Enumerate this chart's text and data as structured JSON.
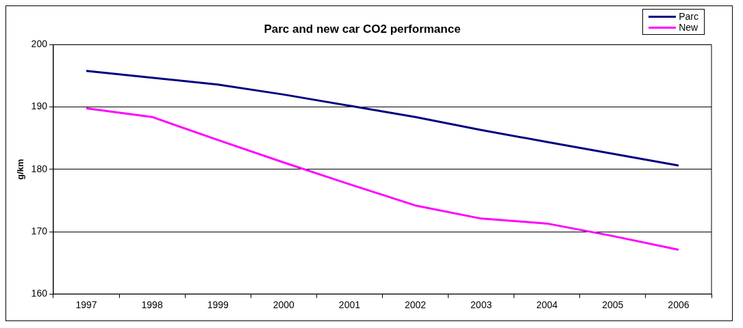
{
  "chart_data": {
    "type": "line",
    "title": "Parc and new car CO2 performance",
    "ylabel": "g/km",
    "categories": [
      "1997",
      "1998",
      "1999",
      "2000",
      "2001",
      "2002",
      "2003",
      "2004",
      "2005",
      "2006"
    ],
    "series": [
      {
        "name": "Parc",
        "color": "#000080",
        "values": [
          195.8,
          194.7,
          193.6,
          192.0,
          190.2,
          188.4,
          186.3,
          184.4,
          182.5,
          180.6
        ]
      },
      {
        "name": "New",
        "color": "#ff00ff",
        "values": [
          189.8,
          188.4,
          184.7,
          181.1,
          177.6,
          174.2,
          172.1,
          171.3,
          169.3,
          167.1
        ]
      }
    ],
    "ylim": [
      160,
      200
    ],
    "yticks": [
      160,
      170,
      180,
      190,
      200
    ],
    "grid": "y",
    "legend": "top right",
    "marker": "none",
    "line_style": "solid"
  }
}
